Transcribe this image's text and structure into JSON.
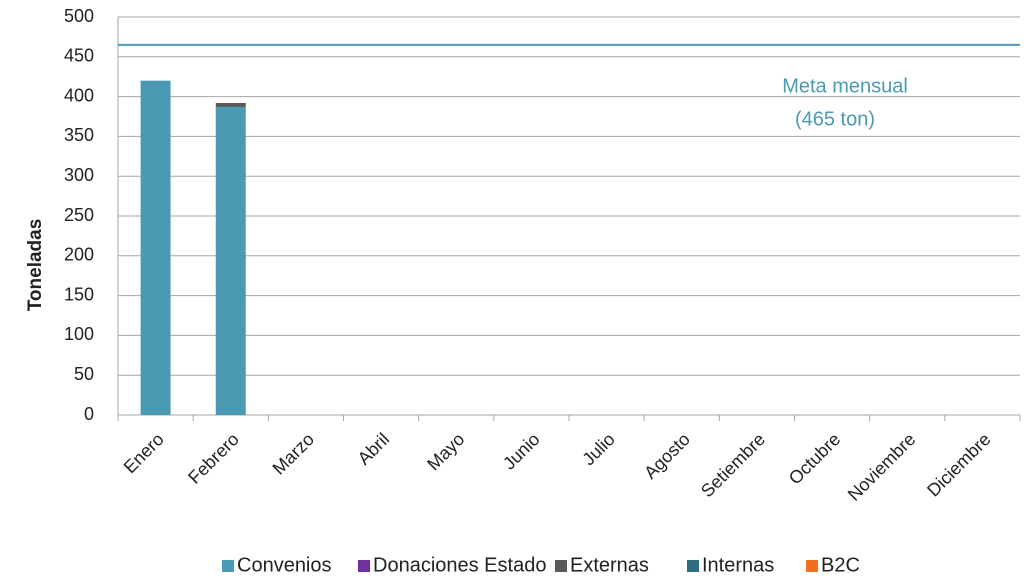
{
  "chart_data": {
    "type": "stacked_bar",
    "y_label": "Toneladas",
    "categories": [
      "Enero",
      "Febrero",
      "Marzo",
      "Abril",
      "Mayo",
      "Junio",
      "Julio",
      "Agosto",
      "Setiembre",
      "Octubre",
      "Noviembre",
      "Diciembre"
    ],
    "series": [
      {
        "name": "Convenios",
        "color": "#4a9ab4",
        "values": [
          420,
          387,
          null,
          null,
          null,
          null,
          null,
          null,
          null,
          null,
          null,
          null
        ]
      },
      {
        "name": "Donaciones Estado",
        "color": "#7030a0",
        "values": [
          null,
          null,
          null,
          null,
          null,
          null,
          null,
          null,
          null,
          null,
          null,
          null
        ]
      },
      {
        "name": "Externas",
        "color": "#595959",
        "values": [
          null,
          5,
          null,
          null,
          null,
          null,
          null,
          null,
          null,
          null,
          null,
          null
        ]
      },
      {
        "name": "Internas",
        "color": "#2e6e80",
        "values": [
          null,
          null,
          null,
          null,
          null,
          null,
          null,
          null,
          null,
          null,
          null,
          null
        ]
      },
      {
        "name": "B2C",
        "color": "#f07020",
        "values": [
          null,
          null,
          null,
          null,
          null,
          null,
          null,
          null,
          null,
          null,
          null,
          null
        ]
      }
    ],
    "target": {
      "value": 465,
      "color": "#4a9ab4",
      "label": "Meta mensual",
      "sublabel": "(465 ton)"
    },
    "ylim": [
      0,
      500
    ],
    "yticks": [
      0,
      50,
      100,
      150,
      200,
      250,
      300,
      350,
      400,
      450,
      500
    ],
    "grid": true,
    "legend": "bottom"
  }
}
